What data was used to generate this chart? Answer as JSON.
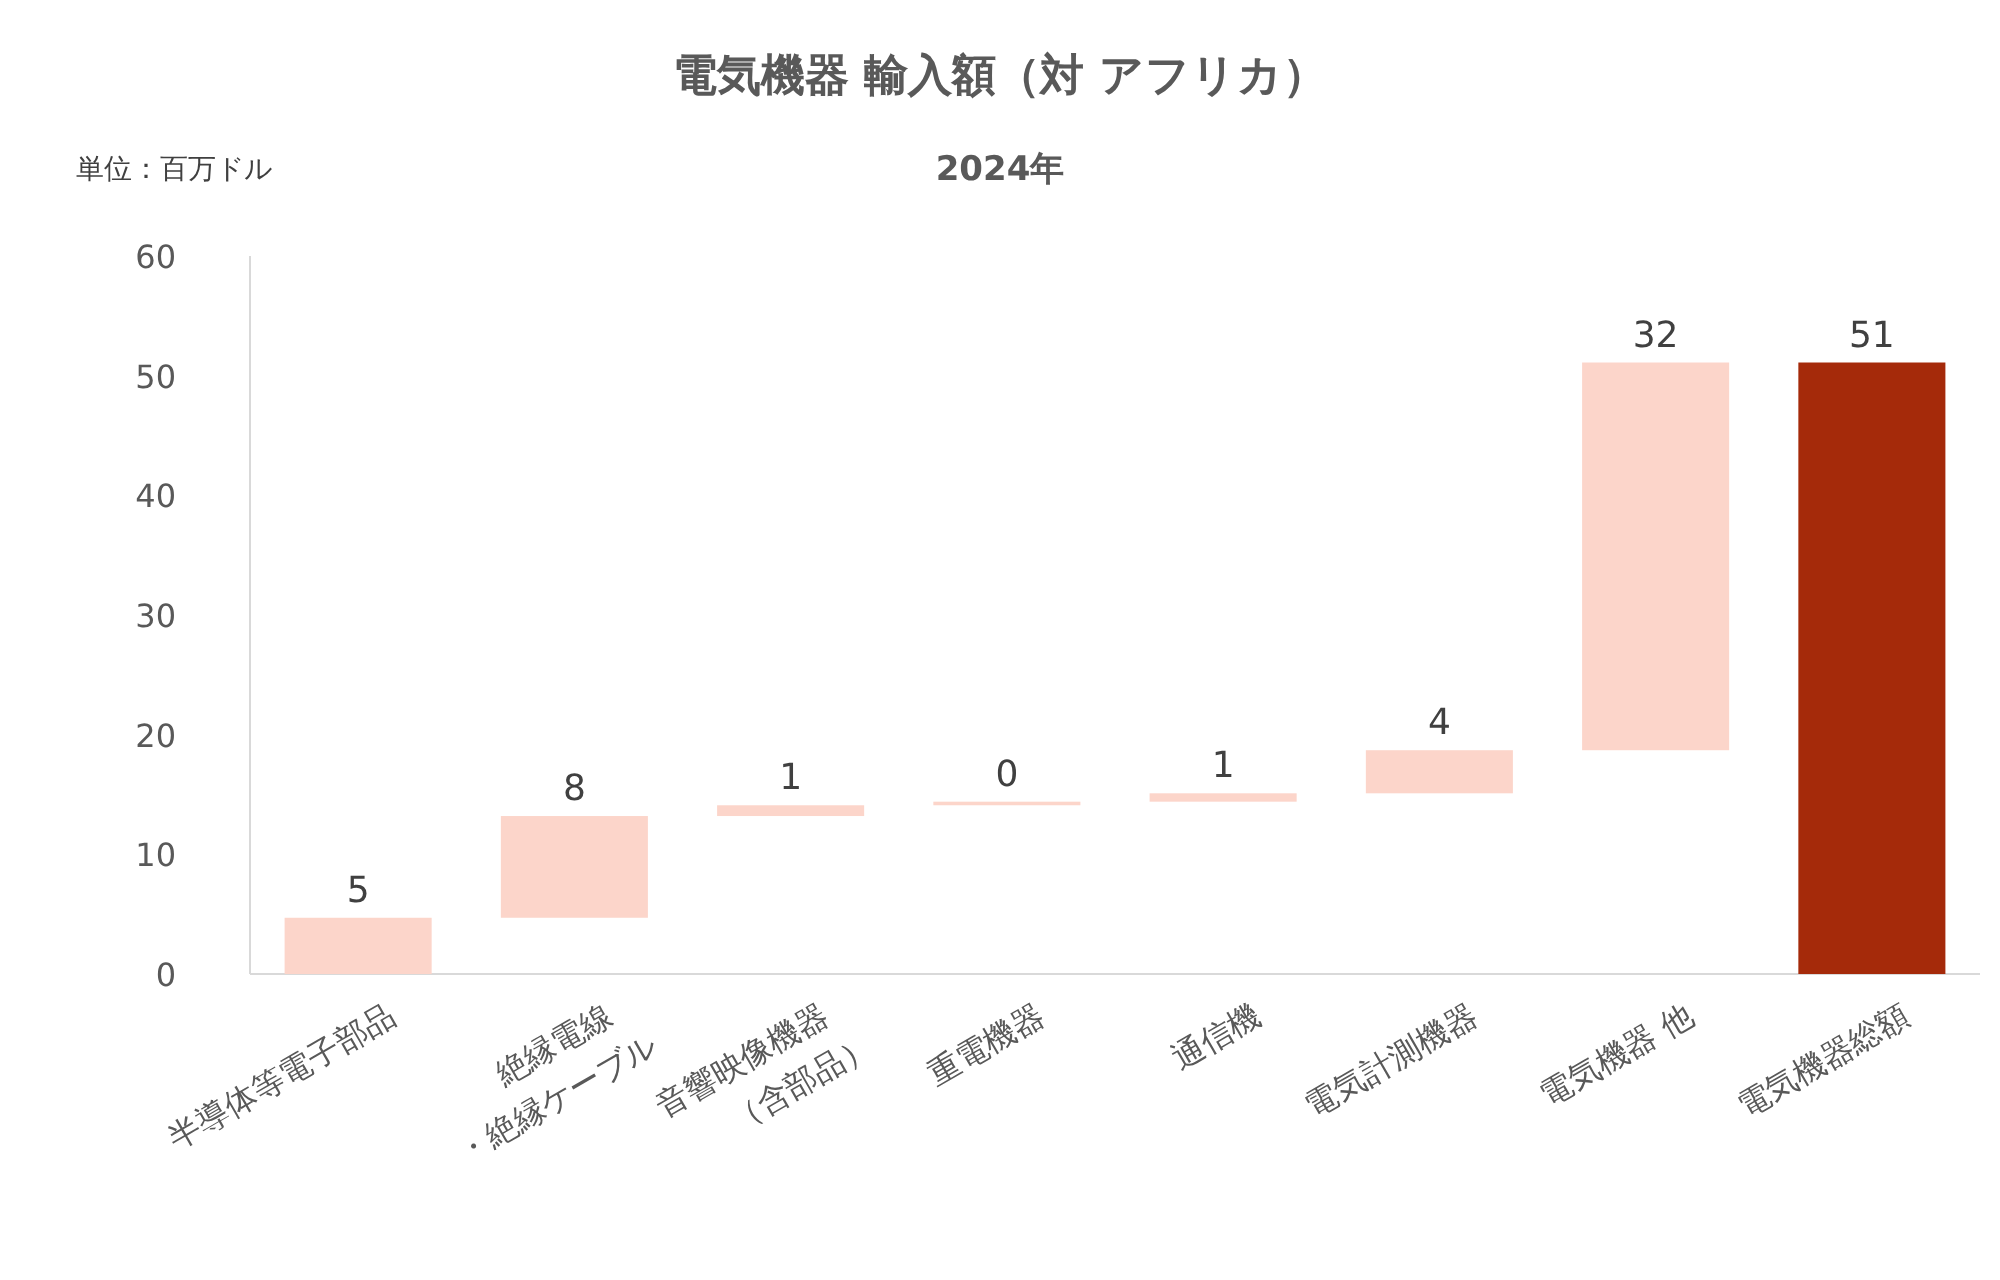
{
  "chart_data": {
    "type": "bar",
    "title": "電気機器 輸入額（対 アフリカ）",
    "subtitle": "2024年",
    "annotations": [
      "単位：百万ドル"
    ],
    "categories": [
      "半導体等電子部品",
      "絶縁電線\n・絶縁ケーブル",
      "音響映像機器\n（含部品）",
      "重電機器",
      "通信機",
      "電気計測機器",
      "電気機器 他",
      "電気機器総額"
    ],
    "values": [
      4.7,
      8.5,
      0.9,
      0.3,
      0.7,
      3.6,
      32.4,
      51.1
    ],
    "base": [
      0,
      4.7,
      13.2,
      14.1,
      14.4,
      15.1,
      18.7,
      0
    ],
    "colors": [
      "#fcd5ca",
      "#fcd5ca",
      "#fcd5ca",
      "#fcd5ca",
      "#fcd5ca",
      "#fcd5ca",
      "#fcd5ca",
      "#a52a0a"
    ],
    "value_labels": [
      "5",
      "8",
      "1",
      "0",
      "1",
      "4",
      "32",
      "51"
    ],
    "ylim": [
      0,
      60
    ],
    "yticks": [
      0,
      10,
      20,
      30,
      40,
      50,
      60
    ],
    "grid": false
  }
}
